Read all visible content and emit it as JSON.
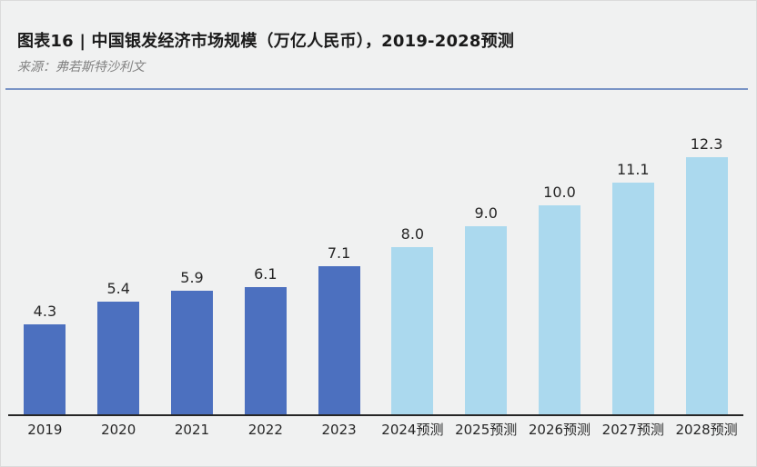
{
  "page": {
    "background": "#F0F1F1"
  },
  "header": {
    "title": "图表16 | 中国银发经济市场规模（万亿人民币），2019-2028预测",
    "source": "来源：弗若斯特沙利文",
    "divider_color": "#7A94C6"
  },
  "chart_data": {
    "type": "bar",
    "title": "中国银发经济市场规模（万亿人民币），2019-2028预测",
    "xlabel": "",
    "ylabel": "万亿人民币",
    "categories": [
      "2019",
      "2020",
      "2021",
      "2022",
      "2023",
      "2024预测",
      "2025预测",
      "2026预测",
      "2027预测",
      "2028预测"
    ],
    "values": [
      4.3,
      5.4,
      5.9,
      6.1,
      7.1,
      8.0,
      9.0,
      10.0,
      11.1,
      12.3
    ],
    "value_labels": [
      "4.3",
      "5.4",
      "5.9",
      "6.1",
      "7.1",
      "8.0",
      "9.0",
      "10.0",
      "11.1",
      "12.3"
    ],
    "segments": [
      "historical",
      "historical",
      "historical",
      "historical",
      "historical",
      "forecast",
      "forecast",
      "forecast",
      "forecast",
      "forecast"
    ],
    "colors": {
      "historical": "#4C70BF",
      "forecast": "#ABD9EE"
    },
    "axis_color": "#262626",
    "label_color": "#262626",
    "ylim": [
      0,
      13
    ],
    "grid": false,
    "legend": "none",
    "data_labels": "above-bars"
  }
}
